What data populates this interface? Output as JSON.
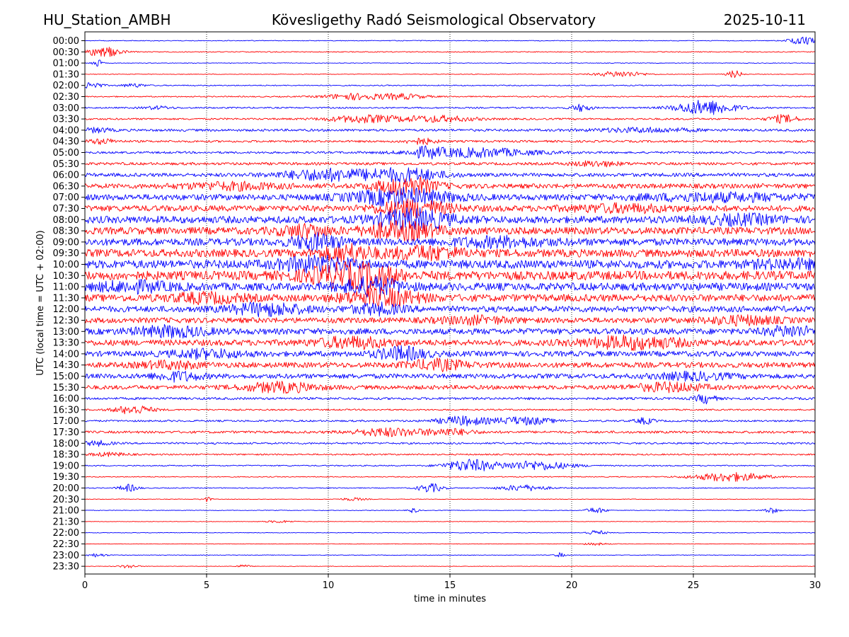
{
  "header": {
    "station": "HU_Station_AMBH",
    "observatory": "Kövesligethy Radó Seismological Observatory",
    "date": "2025-10-11"
  },
  "chart_data": {
    "type": "line",
    "title": "Kövesligethy Radó Seismological Observatory",
    "xlabel": "time in minutes",
    "ylabel": "UTC (local time = UTC + 02:00)",
    "xlim": [
      0,
      30
    ],
    "x_ticks": [
      "0",
      "5",
      "10",
      "15",
      "20",
      "25",
      "30"
    ],
    "grid": "vertical dotted at each x tick",
    "colors": {
      "even_row": "#0000ff",
      "odd_row": "#ff0000"
    },
    "rows": [
      {
        "label": "00:00",
        "noise": 0.12,
        "events": [
          [
            29.5,
            1.2,
            0.6
          ]
        ]
      },
      {
        "label": "00:30",
        "noise": 0.15,
        "events": [
          [
            0.4,
            1.0,
            1.0
          ],
          [
            1.0,
            0.8,
            0.5
          ]
        ]
      },
      {
        "label": "01:00",
        "noise": 0.1,
        "events": [
          [
            0.5,
            1.3,
            0.2
          ]
        ]
      },
      {
        "label": "01:30",
        "noise": 0.1,
        "events": [
          [
            22.0,
            1.0,
            1.0
          ],
          [
            26.7,
            1.3,
            0.3
          ]
        ]
      },
      {
        "label": "02:00",
        "noise": 0.18,
        "events": [
          [
            0.3,
            1.2,
            0.4
          ],
          [
            2.0,
            0.6,
            0.5
          ]
        ]
      },
      {
        "label": "02:30",
        "noise": 0.2,
        "events": [
          [
            11.0,
            1.0,
            1.2
          ],
          [
            13.0,
            0.9,
            1.0
          ]
        ]
      },
      {
        "label": "03:00",
        "noise": 0.25,
        "events": [
          [
            20.4,
            1.2,
            0.4
          ],
          [
            25.5,
            2.5,
            1.2
          ],
          [
            3.0,
            0.5,
            0.6
          ]
        ]
      },
      {
        "label": "03:30",
        "noise": 0.3,
        "events": [
          [
            11.5,
            1.2,
            1.5
          ],
          [
            14.5,
            1.0,
            1.5
          ],
          [
            28.7,
            1.3,
            0.6
          ]
        ]
      },
      {
        "label": "04:00",
        "noise": 0.4,
        "events": [
          [
            23.0,
            0.7,
            2.0
          ],
          [
            0.5,
            0.7,
            0.6
          ]
        ]
      },
      {
        "label": "04:30",
        "noise": 0.35,
        "events": [
          [
            13.8,
            1.0,
            0.6
          ],
          [
            0.7,
            0.8,
            0.6
          ]
        ]
      },
      {
        "label": "05:00",
        "noise": 0.35,
        "events": [
          [
            16.0,
            1.5,
            2.5
          ],
          [
            14.0,
            1.2,
            0.6
          ]
        ]
      },
      {
        "label": "05:30",
        "noise": 0.45,
        "events": [
          [
            21.0,
            0.8,
            1.0
          ]
        ]
      },
      {
        "label": "06:00",
        "noise": 0.6,
        "events": [
          [
            10.0,
            1.8,
            2.0
          ],
          [
            13.2,
            2.0,
            1.5
          ]
        ]
      },
      {
        "label": "06:30",
        "noise": 0.8,
        "events": [
          [
            13.2,
            3.0,
            1.2
          ],
          [
            6.0,
            1.0,
            2.0
          ]
        ]
      },
      {
        "label": "07:00",
        "noise": 1.0,
        "events": [
          [
            13.0,
            2.5,
            2.0
          ],
          [
            26.0,
            1.0,
            3.0
          ]
        ]
      },
      {
        "label": "07:30",
        "noise": 1.0,
        "events": [
          [
            13.5,
            2.5,
            1.5
          ],
          [
            22.0,
            1.0,
            2.0
          ]
        ]
      },
      {
        "label": "08:00",
        "noise": 1.2,
        "events": [
          [
            13.5,
            3.0,
            1.5
          ],
          [
            27.0,
            1.2,
            1.5
          ]
        ]
      },
      {
        "label": "08:30",
        "noise": 1.2,
        "events": [
          [
            13.0,
            2.5,
            1.5
          ],
          [
            9.0,
            1.8,
            1.0
          ]
        ]
      },
      {
        "label": "09:00",
        "noise": 1.2,
        "events": [
          [
            9.5,
            2.2,
            1.0
          ],
          [
            17.0,
            1.2,
            2.0
          ]
        ]
      },
      {
        "label": "09:30",
        "noise": 1.3,
        "events": [
          [
            10.8,
            2.5,
            1.0
          ],
          [
            14.0,
            1.8,
            1.5
          ]
        ]
      },
      {
        "label": "10:00",
        "noise": 1.4,
        "events": [
          [
            9.5,
            2.0,
            1.5
          ],
          [
            29.0,
            1.0,
            1.5
          ]
        ]
      },
      {
        "label": "10:30",
        "noise": 1.5,
        "events": [
          [
            10.5,
            3.0,
            1.5
          ],
          [
            12.0,
            2.0,
            1.0
          ]
        ]
      },
      {
        "label": "11:00",
        "noise": 1.3,
        "events": [
          [
            11.8,
            2.5,
            1.2
          ],
          [
            2.0,
            1.3,
            1.5
          ]
        ]
      },
      {
        "label": "11:30",
        "noise": 1.2,
        "events": [
          [
            12.2,
            2.5,
            1.5
          ],
          [
            5.0,
            1.2,
            1.5
          ]
        ]
      },
      {
        "label": "12:00",
        "noise": 1.0,
        "events": [
          [
            7.5,
            1.8,
            1.5
          ],
          [
            12.0,
            1.5,
            1.0
          ]
        ]
      },
      {
        "label": "12:30",
        "noise": 0.9,
        "events": [
          [
            27.0,
            1.2,
            1.5
          ],
          [
            16.0,
            1.0,
            1.5
          ]
        ]
      },
      {
        "label": "13:00",
        "noise": 1.0,
        "events": [
          [
            3.5,
            1.5,
            1.5
          ],
          [
            29.0,
            1.5,
            1.0
          ]
        ]
      },
      {
        "label": "13:30",
        "noise": 1.0,
        "events": [
          [
            22.5,
            1.8,
            2.0
          ],
          [
            11.0,
            1.5,
            1.5
          ]
        ]
      },
      {
        "label": "14:00",
        "noise": 0.9,
        "events": [
          [
            13.0,
            2.0,
            1.0
          ],
          [
            5.0,
            1.2,
            1.5
          ]
        ]
      },
      {
        "label": "14:30",
        "noise": 0.9,
        "events": [
          [
            14.5,
            1.5,
            1.2
          ],
          [
            3.5,
            1.0,
            1.2
          ]
        ]
      },
      {
        "label": "15:00",
        "noise": 0.8,
        "events": [
          [
            3.8,
            1.3,
            1.0
          ],
          [
            25.0,
            1.0,
            1.5
          ]
        ]
      },
      {
        "label": "15:30",
        "noise": 0.7,
        "events": [
          [
            8.0,
            1.5,
            1.5
          ],
          [
            24.0,
            1.3,
            1.5
          ]
        ]
      },
      {
        "label": "16:00",
        "noise": 0.4,
        "events": [
          [
            25.5,
            1.5,
            0.4
          ]
        ]
      },
      {
        "label": "16:30",
        "noise": 0.25,
        "events": [
          [
            2.0,
            1.5,
            0.8
          ]
        ]
      },
      {
        "label": "17:00",
        "noise": 0.3,
        "events": [
          [
            15.5,
            1.5,
            1.0
          ],
          [
            18.0,
            1.3,
            1.2
          ],
          [
            23.0,
            1.0,
            0.4
          ]
        ]
      },
      {
        "label": "17:30",
        "noise": 0.4,
        "events": [
          [
            12.5,
            1.3,
            1.5
          ],
          [
            15.0,
            1.0,
            1.0
          ]
        ]
      },
      {
        "label": "18:00",
        "noise": 0.3,
        "events": [
          [
            0.5,
            0.8,
            0.6
          ]
        ]
      },
      {
        "label": "18:30",
        "noise": 0.25,
        "events": [
          [
            1.0,
            0.6,
            0.8
          ]
        ]
      },
      {
        "label": "19:00",
        "noise": 0.2,
        "events": [
          [
            15.8,
            2.0,
            1.0
          ],
          [
            18.5,
            1.5,
            1.5
          ]
        ]
      },
      {
        "label": "19:30",
        "noise": 0.15,
        "events": [
          [
            26.5,
            1.5,
            1.5
          ]
        ]
      },
      {
        "label": "20:00",
        "noise": 0.15,
        "events": [
          [
            14.2,
            1.5,
            0.5
          ],
          [
            1.8,
            1.2,
            0.4
          ],
          [
            18.0,
            1.0,
            1.0
          ]
        ]
      },
      {
        "label": "20:30",
        "noise": 0.1,
        "events": [
          [
            5.0,
            0.8,
            0.2
          ],
          [
            11.0,
            0.5,
            0.5
          ]
        ]
      },
      {
        "label": "21:00",
        "noise": 0.1,
        "events": [
          [
            21.0,
            1.0,
            0.4
          ],
          [
            28.2,
            1.0,
            0.3
          ],
          [
            13.5,
            0.8,
            0.2
          ]
        ]
      },
      {
        "label": "21:30",
        "noise": 0.08,
        "events": [
          [
            8.0,
            0.4,
            0.6
          ]
        ]
      },
      {
        "label": "22:00",
        "noise": 0.1,
        "events": [
          [
            21.0,
            0.8,
            0.4
          ]
        ]
      },
      {
        "label": "22:30",
        "noise": 0.08,
        "events": [
          [
            21.0,
            0.4,
            0.5
          ]
        ]
      },
      {
        "label": "23:00",
        "noise": 0.1,
        "events": [
          [
            19.5,
            0.8,
            0.2
          ],
          [
            0.5,
            0.6,
            0.4
          ]
        ]
      },
      {
        "label": "23:30",
        "noise": 0.08,
        "events": [
          [
            1.8,
            0.6,
            0.4
          ],
          [
            6.5,
            0.5,
            0.3
          ]
        ]
      }
    ]
  }
}
